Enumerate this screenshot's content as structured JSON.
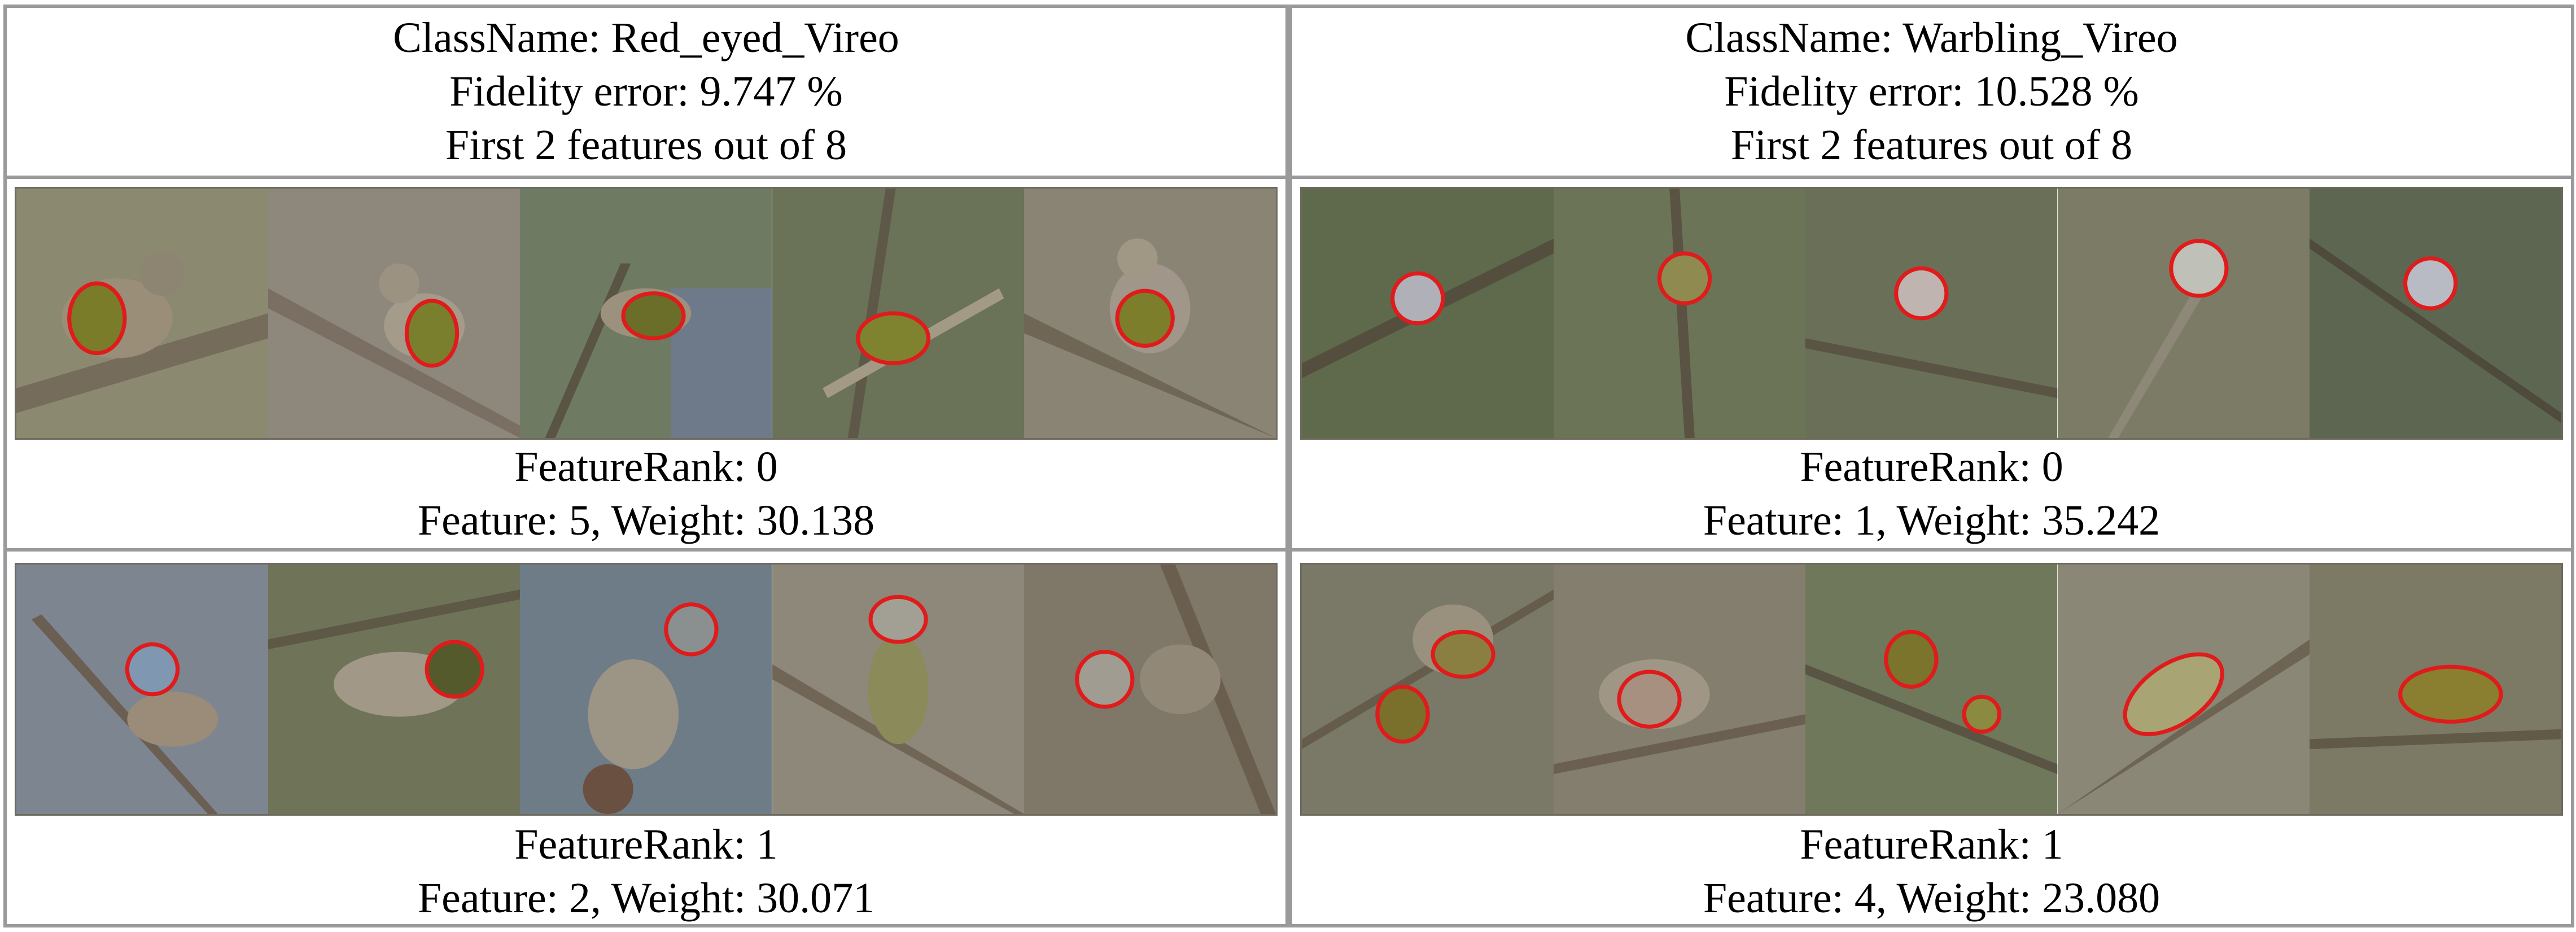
{
  "panels": [
    {
      "class_name_line": "ClassName: Red_eyed_Vireo",
      "fidelity_line": "Fidelity error: 9.747 %",
      "features_line": "First 2 features out of 8",
      "features": [
        {
          "rank_line": "FeatureRank: 0",
          "weight_line": "Feature: 5, Weight: 30.138"
        },
        {
          "rank_line": "FeatureRank: 1",
          "weight_line": "Feature: 2, Weight: 30.071"
        }
      ]
    },
    {
      "class_name_line": "ClassName: Warbling_Vireo",
      "fidelity_line": "Fidelity error: 10.528 %",
      "features_line": "First 2 features out of 8",
      "features": [
        {
          "rank_line": "FeatureRank: 0",
          "weight_line": "Feature: 1, Weight: 35.242"
        },
        {
          "rank_line": "FeatureRank: 1",
          "weight_line": "Feature: 4, Weight: 23.080"
        }
      ]
    }
  ],
  "palette": {
    "outline": "#e01b1b",
    "border": "#9a9a9a"
  }
}
